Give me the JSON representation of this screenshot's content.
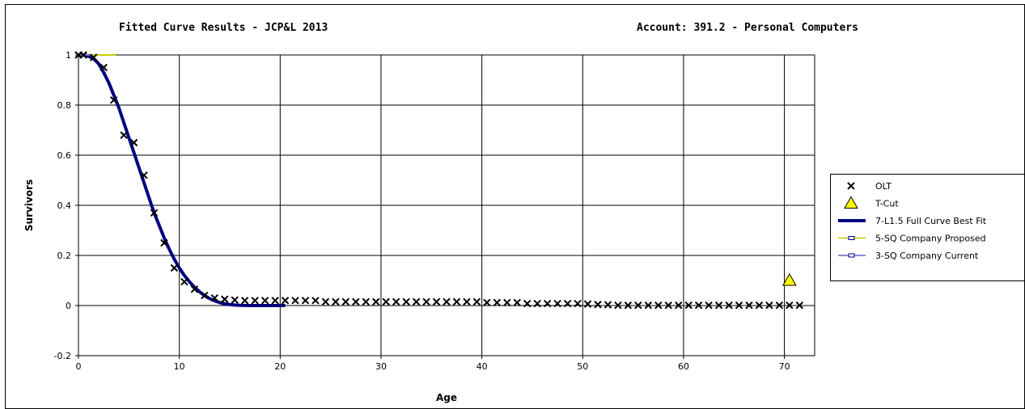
{
  "chart_data": {
    "type": "scatter",
    "title_left": "Fitted Curve Results - JCP&L 2013",
    "title_right": "Account:  391.2 - Personal Computers",
    "xlabel": "Age",
    "ylabel": "Survivors",
    "xlim": [
      0,
      73
    ],
    "ylim": [
      -0.2,
      1
    ],
    "x_ticks": [
      0,
      10,
      20,
      30,
      40,
      50,
      60,
      70
    ],
    "y_ticks": [
      -0.2,
      0,
      0.2,
      0.4,
      0.6,
      0.8,
      1
    ],
    "x_tick_labels": [
      "0",
      "10",
      "20",
      "30",
      "40",
      "50",
      "60",
      "70"
    ],
    "y_tick_labels": [
      "-0.2",
      "0",
      "0.2",
      "0.4",
      "0.6",
      "0.8",
      "1"
    ],
    "grid": true,
    "legend_position": "right",
    "series": [
      {
        "name": "OLT",
        "kind": "scatter",
        "marker": "x",
        "color": "#000000",
        "x": [
          0,
          0.5,
          1.5,
          2.5,
          3.5,
          4.5,
          5.5,
          6.5,
          7.5,
          8.5,
          9.5,
          10.5,
          11.5,
          12.5,
          13.5,
          14.5,
          15.5,
          16.5,
          17.5,
          18.5,
          19.5,
          20.5,
          21.5,
          22.5,
          23.5,
          24.5,
          25.5,
          26.5,
          27.5,
          28.5,
          29.5,
          30.5,
          31.5,
          32.5,
          33.5,
          34.5,
          35.5,
          36.5,
          37.5,
          38.5,
          39.5,
          40.5,
          41.5,
          42.5,
          43.5,
          44.5,
          45.5,
          46.5,
          47.5,
          48.5,
          49.5,
          50.5,
          51.5,
          52.5,
          53.5,
          54.5,
          55.5,
          56.5,
          57.5,
          58.5,
          59.5,
          60.5,
          61.5,
          62.5,
          63.5,
          64.5,
          65.5,
          66.5,
          67.5,
          68.5,
          69.5,
          70.5,
          71.5
        ],
        "y": [
          1.0,
          1.0,
          0.99,
          0.95,
          0.82,
          0.68,
          0.65,
          0.52,
          0.37,
          0.25,
          0.15,
          0.095,
          0.065,
          0.04,
          0.03,
          0.025,
          0.022,
          0.02,
          0.02,
          0.02,
          0.02,
          0.02,
          0.02,
          0.02,
          0.02,
          0.015,
          0.015,
          0.015,
          0.015,
          0.015,
          0.015,
          0.015,
          0.015,
          0.015,
          0.015,
          0.015,
          0.015,
          0.015,
          0.015,
          0.015,
          0.015,
          0.012,
          0.012,
          0.012,
          0.012,
          0.008,
          0.008,
          0.008,
          0.008,
          0.008,
          0.008,
          0.006,
          0.004,
          0.003,
          0.001,
          0.001,
          0.001,
          0.001,
          0.001,
          0.001,
          0.001,
          0.001,
          0.001,
          0.001,
          0.001,
          0.001,
          0.001,
          0.001,
          0.001,
          0.001,
          0.001,
          0.001,
          0.001
        ]
      },
      {
        "name": "T-Cut",
        "kind": "scatter",
        "marker": "triangle",
        "color": "#ffff00",
        "x": [
          70.5
        ],
        "y": [
          0.1
        ]
      },
      {
        "name": "7-L1.5 Full Curve Best Fit",
        "kind": "line",
        "color": "#000080",
        "x": [
          0,
          0.5,
          1,
          1.5,
          2,
          2.5,
          3,
          3.5,
          4,
          4.5,
          5,
          5.5,
          6,
          6.5,
          7,
          7.5,
          8,
          8.5,
          9,
          9.5,
          10,
          10.5,
          11,
          11.5,
          12,
          12.5,
          13,
          13.5,
          14,
          14.5,
          15,
          15.5,
          16,
          16.5,
          17,
          17.5,
          18,
          18.5,
          19,
          19.5,
          20,
          20.5
        ],
        "y": [
          1.0,
          1.0,
          0.995,
          0.985,
          0.965,
          0.93,
          0.89,
          0.84,
          0.79,
          0.73,
          0.67,
          0.61,
          0.55,
          0.49,
          0.43,
          0.37,
          0.32,
          0.27,
          0.225,
          0.185,
          0.15,
          0.12,
          0.095,
          0.073,
          0.055,
          0.04,
          0.028,
          0.019,
          0.012,
          0.007,
          0.004,
          0.002,
          0.001,
          0.0005,
          0.0002,
          0.0001,
          0.0,
          0.0,
          0.0,
          0.0,
          0.0,
          0.0
        ]
      },
      {
        "name": "5-SQ Company Proposed",
        "kind": "line",
        "color": "#cccc00",
        "x": [
          0,
          3.7
        ],
        "y": [
          1.0,
          1.0
        ]
      },
      {
        "name": "3-SQ Company Current",
        "kind": "line",
        "color": "#6666cc",
        "x": [
          0,
          1.2
        ],
        "y": [
          1.0,
          1.0
        ]
      }
    ]
  }
}
